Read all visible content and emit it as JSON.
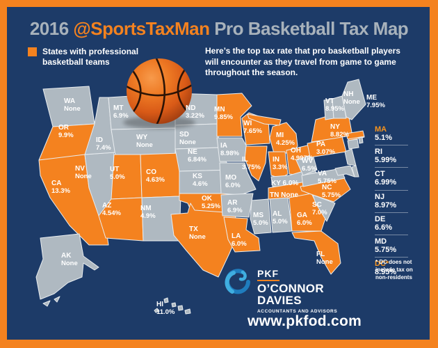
{
  "header": {
    "title_prefix": "2016 ",
    "title_handle": "@SportsTaxMan",
    "title_suffix": " Pro Basketball Tax Map"
  },
  "legend": {
    "label": "States with professional basketball teams"
  },
  "intro": "Here’s the top tax rate that pro basketball players will encounter as they travel from game to game throughout the season.",
  "footnote": "* DC does not include tax on non-residents",
  "footer": {
    "logo_brand": "PKF",
    "logo_name_line1": "O’CONNOR",
    "logo_name_line2": "DAVIES",
    "logo_tagline": "ACCOUNTANTS AND ADVISORS",
    "website": "www.pkfod.com"
  },
  "colors": {
    "frame_orange": "#F4821F",
    "panel_navy": "#1D3B68",
    "team_state": "#F4821F",
    "no_team_state": "#AFB9C1",
    "title_gray": "#A8B2BB"
  },
  "states": [
    {
      "abbr": "WA",
      "rate": "None",
      "team": false
    },
    {
      "abbr": "OR",
      "rate": "9.9%",
      "team": true
    },
    {
      "abbr": "CA",
      "rate": "13.3%",
      "team": true
    },
    {
      "abbr": "NV",
      "rate": "None",
      "team": false
    },
    {
      "abbr": "ID",
      "rate": "7.4%",
      "team": false
    },
    {
      "abbr": "MT",
      "rate": "6.9%",
      "team": false
    },
    {
      "abbr": "WY",
      "rate": "None",
      "team": false
    },
    {
      "abbr": "UT",
      "rate": "5.0%",
      "team": true
    },
    {
      "abbr": "CO",
      "rate": "4.63%",
      "team": true
    },
    {
      "abbr": "AZ",
      "rate": "4.54%",
      "team": true
    },
    {
      "abbr": "NM",
      "rate": "4.9%",
      "team": false
    },
    {
      "abbr": "ND",
      "rate": "3.22%",
      "team": false
    },
    {
      "abbr": "SD",
      "rate": "None",
      "team": false
    },
    {
      "abbr": "NE",
      "rate": "6.84%",
      "team": false
    },
    {
      "abbr": "KS",
      "rate": "4.6%",
      "team": false
    },
    {
      "abbr": "OK",
      "rate": "5.25%",
      "team": true
    },
    {
      "abbr": "TX",
      "rate": "None",
      "team": true
    },
    {
      "abbr": "MN",
      "rate": "9.85%",
      "team": true
    },
    {
      "abbr": "IA",
      "rate": "8.98%",
      "team": false
    },
    {
      "abbr": "MO",
      "rate": "6.0%",
      "team": false
    },
    {
      "abbr": "AR",
      "rate": "6.9%",
      "team": false
    },
    {
      "abbr": "LA",
      "rate": "6.0%",
      "team": true
    },
    {
      "abbr": "WI",
      "rate": "7.65%",
      "team": true
    },
    {
      "abbr": "IL",
      "rate": "3.75%",
      "team": true
    },
    {
      "abbr": "MI",
      "rate": "4.25%",
      "team": true
    },
    {
      "abbr": "IN",
      "rate": "3.3%",
      "team": true
    },
    {
      "abbr": "OH",
      "rate": "4.997%",
      "team": true
    },
    {
      "abbr": "KY",
      "rate": "6.0%",
      "team": false
    },
    {
      "abbr": "TN",
      "rate": "None",
      "team": true
    },
    {
      "abbr": "MS",
      "rate": "5.0%",
      "team": false
    },
    {
      "abbr": "AL",
      "rate": "5.0%",
      "team": false
    },
    {
      "abbr": "GA",
      "rate": "6.0%",
      "team": true
    },
    {
      "abbr": "FL",
      "rate": "None",
      "team": true
    },
    {
      "abbr": "SC",
      "rate": "7.0%",
      "team": false
    },
    {
      "abbr": "NC",
      "rate": "5.75%",
      "team": true
    },
    {
      "abbr": "VA",
      "rate": "5.75%",
      "team": false
    },
    {
      "abbr": "WV",
      "rate": "6.5%",
      "team": false
    },
    {
      "abbr": "PA",
      "rate": "3.07%",
      "team": true
    },
    {
      "abbr": "NY",
      "rate": "8.82%",
      "team": true
    },
    {
      "abbr": "VT",
      "rate": "8.95%",
      "team": false
    },
    {
      "abbr": "NH",
      "rate": "None",
      "team": false
    },
    {
      "abbr": "ME",
      "rate": "7.95%",
      "team": false
    },
    {
      "abbr": "AK",
      "rate": "None",
      "team": false
    },
    {
      "abbr": "HI",
      "rate": "11.0%",
      "team": false
    }
  ],
  "east_list": [
    {
      "abbr": "MA",
      "rate": "5.1%",
      "team": true
    },
    {
      "abbr": "RI",
      "rate": "5.99%",
      "team": false
    },
    {
      "abbr": "CT",
      "rate": "6.99%",
      "team": false
    },
    {
      "abbr": "NJ",
      "rate": "8.97%",
      "team": false
    },
    {
      "abbr": "DE",
      "rate": "6.6%",
      "team": false
    },
    {
      "abbr": "MD",
      "rate": "5.75%",
      "team": false
    },
    {
      "abbr": "DC*",
      "rate": "8.95%",
      "team": true
    }
  ]
}
